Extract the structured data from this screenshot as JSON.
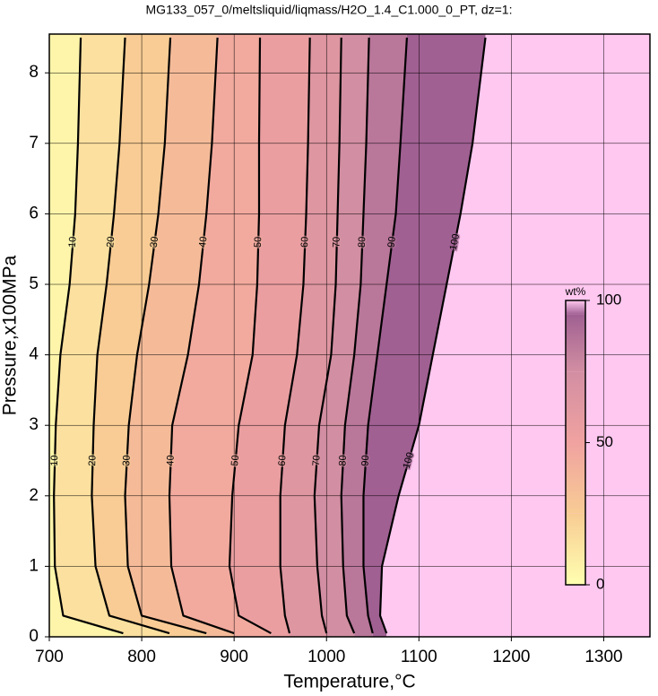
{
  "chart_data": {
    "type": "contour",
    "title": "MG133_057_0/meltsliquid/liqmass/H2O_1.4_C1.000_0_PT, dz=1:",
    "x_label": "Temperature,°C",
    "y_label": "Pressure,x100MPa",
    "xlim": [
      700,
      1350
    ],
    "ylim": [
      0,
      8.55
    ],
    "xticks": [
      700,
      800,
      900,
      1000,
      1100,
      1200,
      1300
    ],
    "yticks": [
      0,
      1,
      2,
      3,
      4,
      5,
      6,
      7,
      8
    ],
    "grid": true,
    "pressure": [
      0.05,
      0.3,
      1,
      2,
      3,
      4,
      5,
      6,
      7,
      8.5
    ],
    "contours": [
      {
        "level": 10,
        "temperature": [
          780,
          715,
          706,
          705,
          707,
          712,
          722,
          728,
          731,
          734
        ]
      },
      {
        "level": 20,
        "temperature": [
          830,
          765,
          750,
          746,
          748,
          752,
          762,
          770,
          776,
          782
        ]
      },
      {
        "level": 30,
        "temperature": [
          870,
          800,
          785,
          782,
          786,
          795,
          808,
          818,
          825,
          831
        ]
      },
      {
        "level": 40,
        "temperature": [
          900,
          845,
          832,
          830,
          833,
          850,
          862,
          870,
          876,
          882
        ]
      },
      {
        "level": 50,
        "temperature": [
          940,
          905,
          895,
          898,
          905,
          920,
          925,
          927,
          927,
          928
        ]
      },
      {
        "level": 60,
        "temperature": [
          960,
          955,
          950,
          950,
          955,
          968,
          975,
          978,
          980,
          982
        ]
      },
      {
        "level": 70,
        "temperature": [
          1000,
          995,
          990,
          987,
          992,
          1005,
          1010,
          1012,
          1014,
          1016
        ]
      },
      {
        "level": 80,
        "temperature": [
          1030,
          1022,
          1018,
          1016,
          1020,
          1030,
          1037,
          1040,
          1043,
          1046
        ]
      },
      {
        "level": 90,
        "temperature": [
          1050,
          1045,
          1040,
          1040,
          1045,
          1055,
          1065,
          1075,
          1080,
          1087
        ]
      },
      {
        "level": 100,
        "temperature": [
          1065,
          1058,
          1060,
          1078,
          1100,
          1115,
          1130,
          1145,
          1158,
          1172
        ]
      }
    ],
    "colorbar": {
      "label": "wt%",
      "lim": [
        0,
        100
      ],
      "ticks": [
        0,
        50,
        100
      ],
      "stops": [
        0,
        25,
        50,
        75,
        95,
        100
      ],
      "colors": [
        "#ffffb0",
        "#f8cc94",
        "#f0a2a0",
        "#d28ea2",
        "#a06092",
        "#ffc8f0"
      ]
    }
  }
}
